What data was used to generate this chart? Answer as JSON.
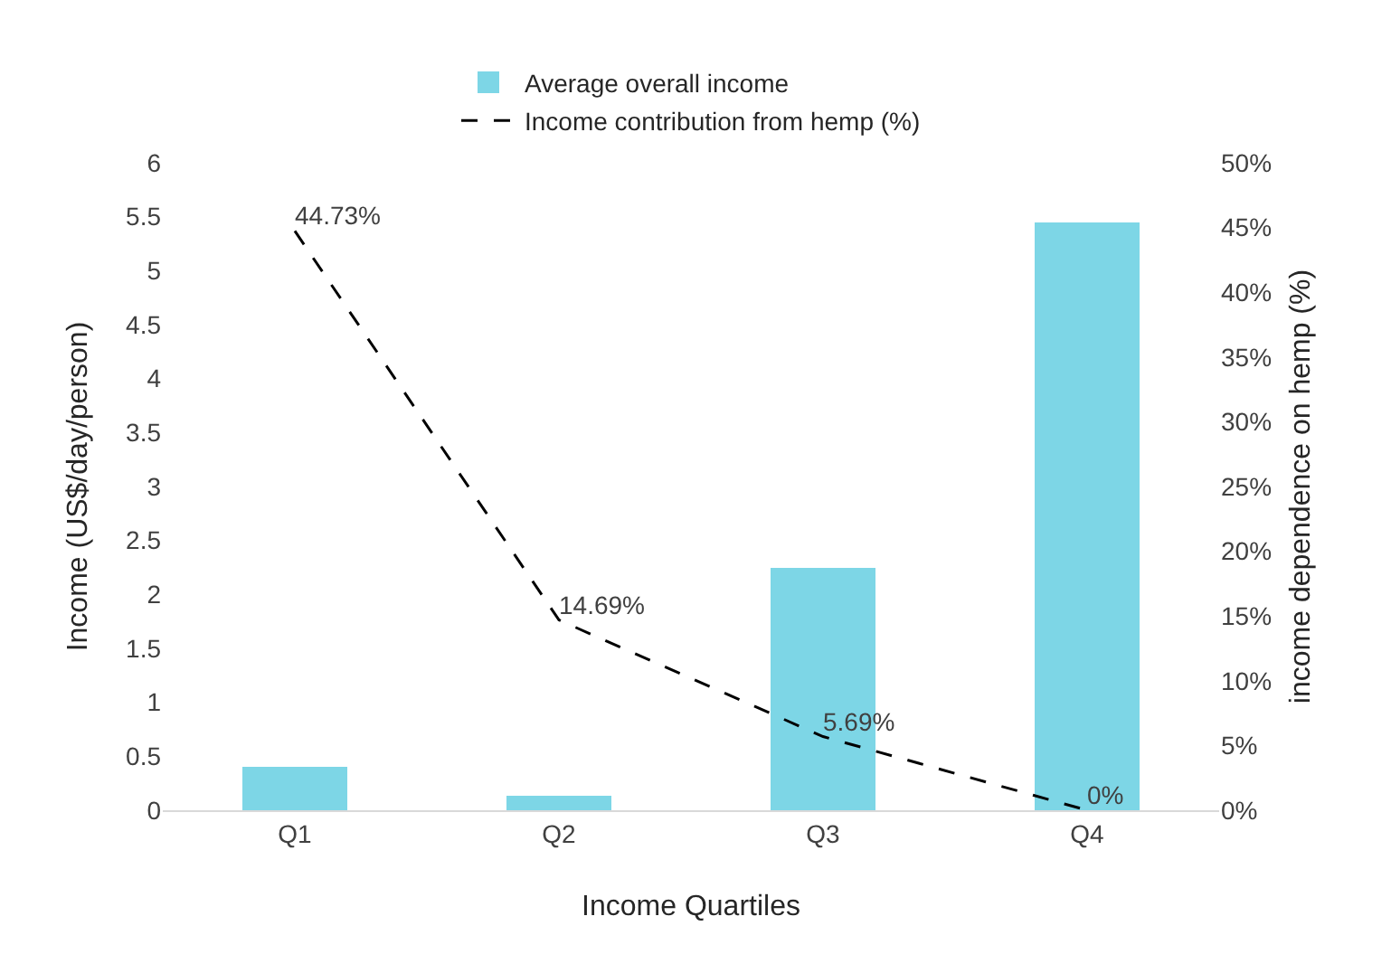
{
  "chart_data": {
    "type": "bar",
    "xlabel": "Income Quartiles",
    "ylabel": "Income (US$/day/person)",
    "y2label": "income dependence on hemp (%)",
    "categories": [
      "Q1",
      "Q2",
      "Q3",
      "Q4"
    ],
    "series": [
      {
        "name": "Average overall income",
        "color": "#7dd6e6",
        "values": [
          0.4,
          0.14,
          2.25,
          5.45
        ]
      },
      {
        "name": "Income contribution from hemp (%)",
        "type": "line",
        "axis": "y2",
        "color": "#000000",
        "line_style": "dashed",
        "marker": "none",
        "values": [
          44.73,
          14.69,
          5.69,
          0
        ],
        "value_labels": [
          "44.73%",
          "14.69%",
          "5.69%",
          "0%"
        ]
      }
    ],
    "ylim": [
      0,
      6
    ],
    "yticks": [
      0,
      0.5,
      1,
      1.5,
      2,
      2.5,
      3,
      3.5,
      4,
      4.5,
      5,
      5.5,
      6
    ],
    "y2lim": [
      0,
      50
    ],
    "y2ticks": [
      {
        "value": 0,
        "label": "0%"
      },
      {
        "value": 5,
        "label": "5%"
      },
      {
        "value": 10,
        "label": "10%"
      },
      {
        "value": 15,
        "label": "15%"
      },
      {
        "value": 20,
        "label": "20%"
      },
      {
        "value": 25,
        "label": "25%"
      },
      {
        "value": 30,
        "label": "30%"
      },
      {
        "value": 35,
        "label": "35%"
      },
      {
        "value": 40,
        "label": "40%"
      },
      {
        "value": 45,
        "label": "45%"
      },
      {
        "value": 50,
        "label": "50%"
      }
    ],
    "grid": false,
    "legend": "top"
  }
}
